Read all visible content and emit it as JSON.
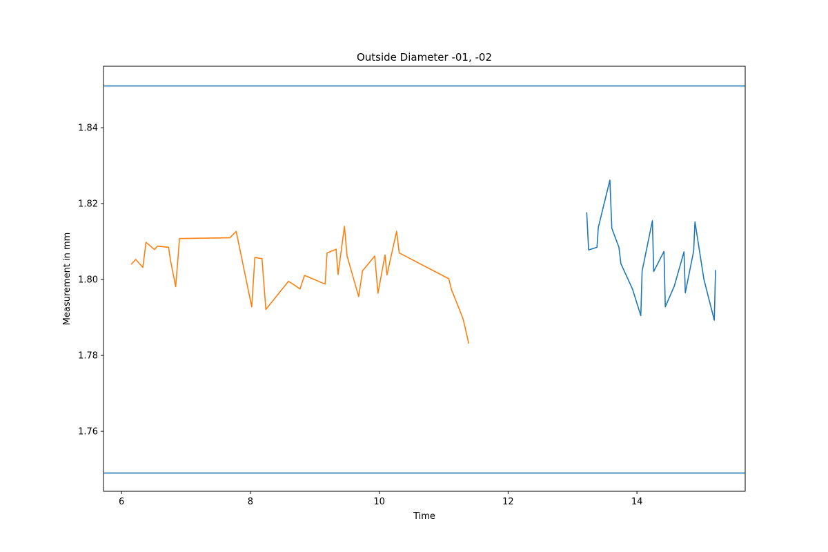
{
  "chart_data": {
    "type": "line",
    "title": "Outside Diameter -01, -02",
    "xlabel": "Time",
    "ylabel": "Measurement in mm",
    "xlim": [
      5.72,
      15.68
    ],
    "ylim": [
      1.7442,
      1.8562
    ],
    "xticks": [
      6,
      8,
      10,
      12,
      14
    ],
    "yticks": [
      1.76,
      1.78,
      1.8,
      1.82,
      1.84
    ],
    "ytick_labels": [
      "1.76",
      "1.78",
      "1.80",
      "1.82",
      "1.84"
    ],
    "grid": false,
    "hlines": [
      {
        "y": 1.851,
        "color": "#1f77b4"
      },
      {
        "y": 1.749,
        "color": "#1f77b4"
      }
    ],
    "series": [
      {
        "color": "#1f77b4",
        "x": [
          13.22,
          13.25,
          13.38,
          13.4,
          13.58,
          13.61,
          13.72,
          13.75,
          13.93,
          14.06,
          14.08,
          14.24,
          14.26,
          14.42,
          14.44,
          14.58,
          14.61,
          14.73,
          14.75,
          14.88,
          14.9,
          15.04,
          15.2,
          15.22
        ],
        "y": [
          1.8177,
          1.8078,
          1.8085,
          1.8137,
          1.8262,
          1.8135,
          1.8085,
          1.8042,
          1.7975,
          1.7905,
          1.8022,
          1.8155,
          1.8021,
          1.8074,
          1.7928,
          1.7983,
          1.8001,
          1.8073,
          1.7965,
          1.8075,
          1.8152,
          1.8,
          1.7893,
          1.8025
        ]
      },
      {
        "color": "#ff7f0e",
        "x": [
          6.15,
          6.22,
          6.33,
          6.38,
          6.51,
          6.56,
          6.73,
          6.76,
          6.84,
          6.9,
          7.68,
          7.78,
          8.02,
          8.07,
          8.18,
          8.24,
          8.59,
          8.67,
          8.77,
          8.84,
          9.16,
          9.19,
          9.33,
          9.36,
          9.46,
          9.5,
          9.68,
          9.74,
          9.93,
          9.98,
          10.09,
          10.12,
          10.27,
          10.31,
          11.08,
          11.12,
          11.3,
          11.39
        ],
        "y": [
          1.804,
          1.8053,
          1.8032,
          1.8098,
          1.8079,
          1.8088,
          1.8085,
          1.805,
          1.7981,
          1.8108,
          1.811,
          1.8127,
          1.7928,
          1.8058,
          1.8055,
          1.7921,
          1.7995,
          1.7987,
          1.7975,
          1.8011,
          1.7988,
          1.807,
          1.808,
          1.8013,
          1.814,
          1.8062,
          1.7955,
          1.8023,
          1.8062,
          1.7964,
          1.8065,
          1.8012,
          1.8127,
          1.807,
          1.8002,
          1.7974,
          1.7897,
          1.7831
        ]
      }
    ]
  }
}
